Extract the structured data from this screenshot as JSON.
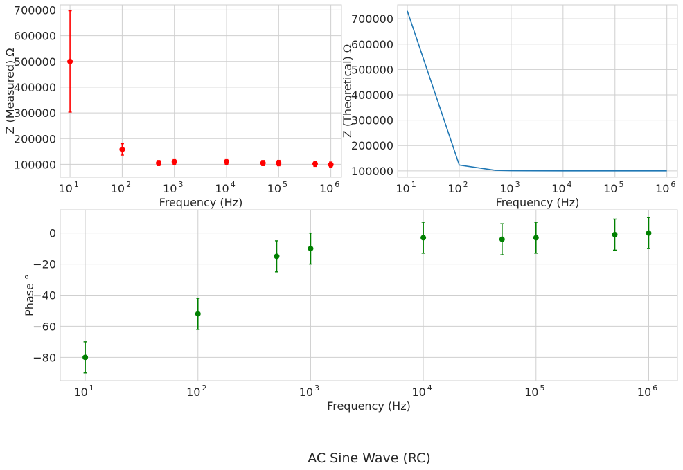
{
  "figure": {
    "suptitle": "AC Sine Wave (RC)"
  },
  "chart_data": [
    {
      "id": "measured",
      "type": "scatter",
      "xscale": "log",
      "xlim": [
        6.5,
        1600000
      ],
      "ylim": [
        50000,
        720000
      ],
      "xticks": [
        10,
        100,
        1000,
        10000,
        100000,
        1000000
      ],
      "xtick_labels": [
        {
          "base": "10",
          "exp": "1"
        },
        {
          "base": "10",
          "exp": "2"
        },
        {
          "base": "10",
          "exp": "3"
        },
        {
          "base": "10",
          "exp": "4"
        },
        {
          "base": "10",
          "exp": "5"
        },
        {
          "base": "10",
          "exp": "6"
        }
      ],
      "yticks": [
        100000,
        200000,
        300000,
        400000,
        500000,
        600000,
        700000
      ],
      "ytick_labels": [
        "100000",
        "200000",
        "300000",
        "400000",
        "500000",
        "600000",
        "700000"
      ],
      "xlabel": "Frequency (Hz)",
      "ylabel": "Z (Measured) Ω",
      "grid": true,
      "color": "#ff0000",
      "series": [
        {
          "x": [
            10,
            100,
            500,
            1000,
            10000,
            50000,
            100000,
            500000,
            1000000
          ],
          "y": [
            500000,
            158000,
            105000,
            110000,
            110000,
            105000,
            105000,
            102000,
            99000
          ],
          "yerr": [
            197000,
            22000,
            10000,
            11000,
            11000,
            10000,
            10500,
            10000,
            10000
          ]
        }
      ]
    },
    {
      "id": "theoretical",
      "type": "line",
      "xscale": "log",
      "xlim": [
        6.5,
        1600000
      ],
      "ylim": [
        75000,
        755000
      ],
      "xticks": [
        10,
        100,
        1000,
        10000,
        100000,
        1000000
      ],
      "xtick_labels": [
        {
          "base": "10",
          "exp": "1"
        },
        {
          "base": "10",
          "exp": "2"
        },
        {
          "base": "10",
          "exp": "3"
        },
        {
          "base": "10",
          "exp": "4"
        },
        {
          "base": "10",
          "exp": "5"
        },
        {
          "base": "10",
          "exp": "6"
        }
      ],
      "yticks": [
        100000,
        200000,
        300000,
        400000,
        500000,
        600000,
        700000
      ],
      "ytick_labels": [
        "100000",
        "200000",
        "300000",
        "400000",
        "500000",
        "600000",
        "700000"
      ],
      "xlabel": "Frequency (Hz)",
      "ylabel": "Z (Theoretical)  Ω",
      "grid": true,
      "color": "#1f77b4",
      "series": [
        {
          "x": [
            10,
            100,
            500,
            1000,
            10000,
            50000,
            100000,
            500000,
            1000000
          ],
          "y": [
            731000,
            123000,
            102000,
            100800,
            100000,
            100000,
            100000,
            100000,
            100000
          ]
        }
      ]
    },
    {
      "id": "phase",
      "type": "scatter",
      "xscale": "log",
      "xlim": [
        6.0,
        1800000
      ],
      "ylim": [
        -95,
        15
      ],
      "xticks": [
        10,
        100,
        1000,
        10000,
        100000,
        1000000
      ],
      "xtick_labels": [
        {
          "base": "10",
          "exp": "1"
        },
        {
          "base": "10",
          "exp": "2"
        },
        {
          "base": "10",
          "exp": "3"
        },
        {
          "base": "10",
          "exp": "4"
        },
        {
          "base": "10",
          "exp": "5"
        },
        {
          "base": "10",
          "exp": "6"
        }
      ],
      "yticks": [
        -80,
        -60,
        -40,
        -20,
        0
      ],
      "ytick_labels": [
        "−80",
        "−60",
        "−40",
        "−20",
        "0"
      ],
      "xlabel": "Frequency (Hz)",
      "ylabel": "Phase  °",
      "grid": true,
      "color": "#008000",
      "series": [
        {
          "x": [
            10,
            100,
            500,
            1000,
            10000,
            50000,
            100000,
            500000,
            1000000
          ],
          "y": [
            -80,
            -52,
            -15,
            -10,
            -3,
            -4,
            -3,
            -1,
            0
          ],
          "yerr": [
            10,
            10,
            10,
            10,
            10,
            10,
            10,
            10,
            10
          ]
        }
      ]
    }
  ]
}
